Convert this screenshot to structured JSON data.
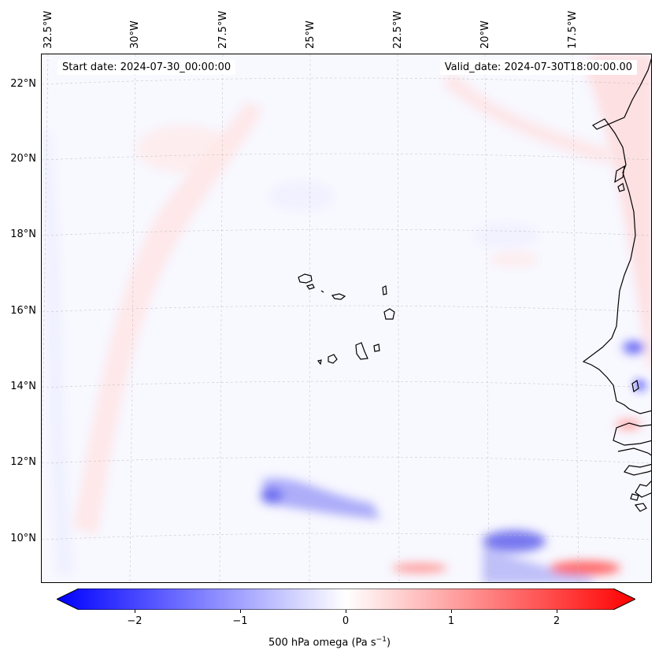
{
  "header": {
    "start_date": "Start date: 2024-07-30_00:00:00",
    "valid_date": "Valid_date: 2024-07-30T18:00:00.00"
  },
  "axes": {
    "longitude_labels": [
      "32.5°W",
      "30°W",
      "27.5°W",
      "25°W",
      "22.5°W",
      "20°W",
      "17.5°W"
    ],
    "latitude_labels": [
      "22°N",
      "20°N",
      "18°N",
      "16°N",
      "14°N",
      "12°N",
      "10°N"
    ]
  },
  "colorbar": {
    "ticks": [
      "−2",
      "−1",
      "0",
      "1",
      "2"
    ],
    "label_prefix": "500 hPa omega (Pa s",
    "label_exp": "−1",
    "label_suffix": ")",
    "min": -2.5,
    "max": 2.5,
    "colormap": "bwr",
    "extend": "both"
  },
  "colors": {
    "negative": "#0000ff",
    "zero": "#ffffff",
    "positive": "#ff0000",
    "coastline": "#000000",
    "gridline": "#bbbbbb"
  }
}
